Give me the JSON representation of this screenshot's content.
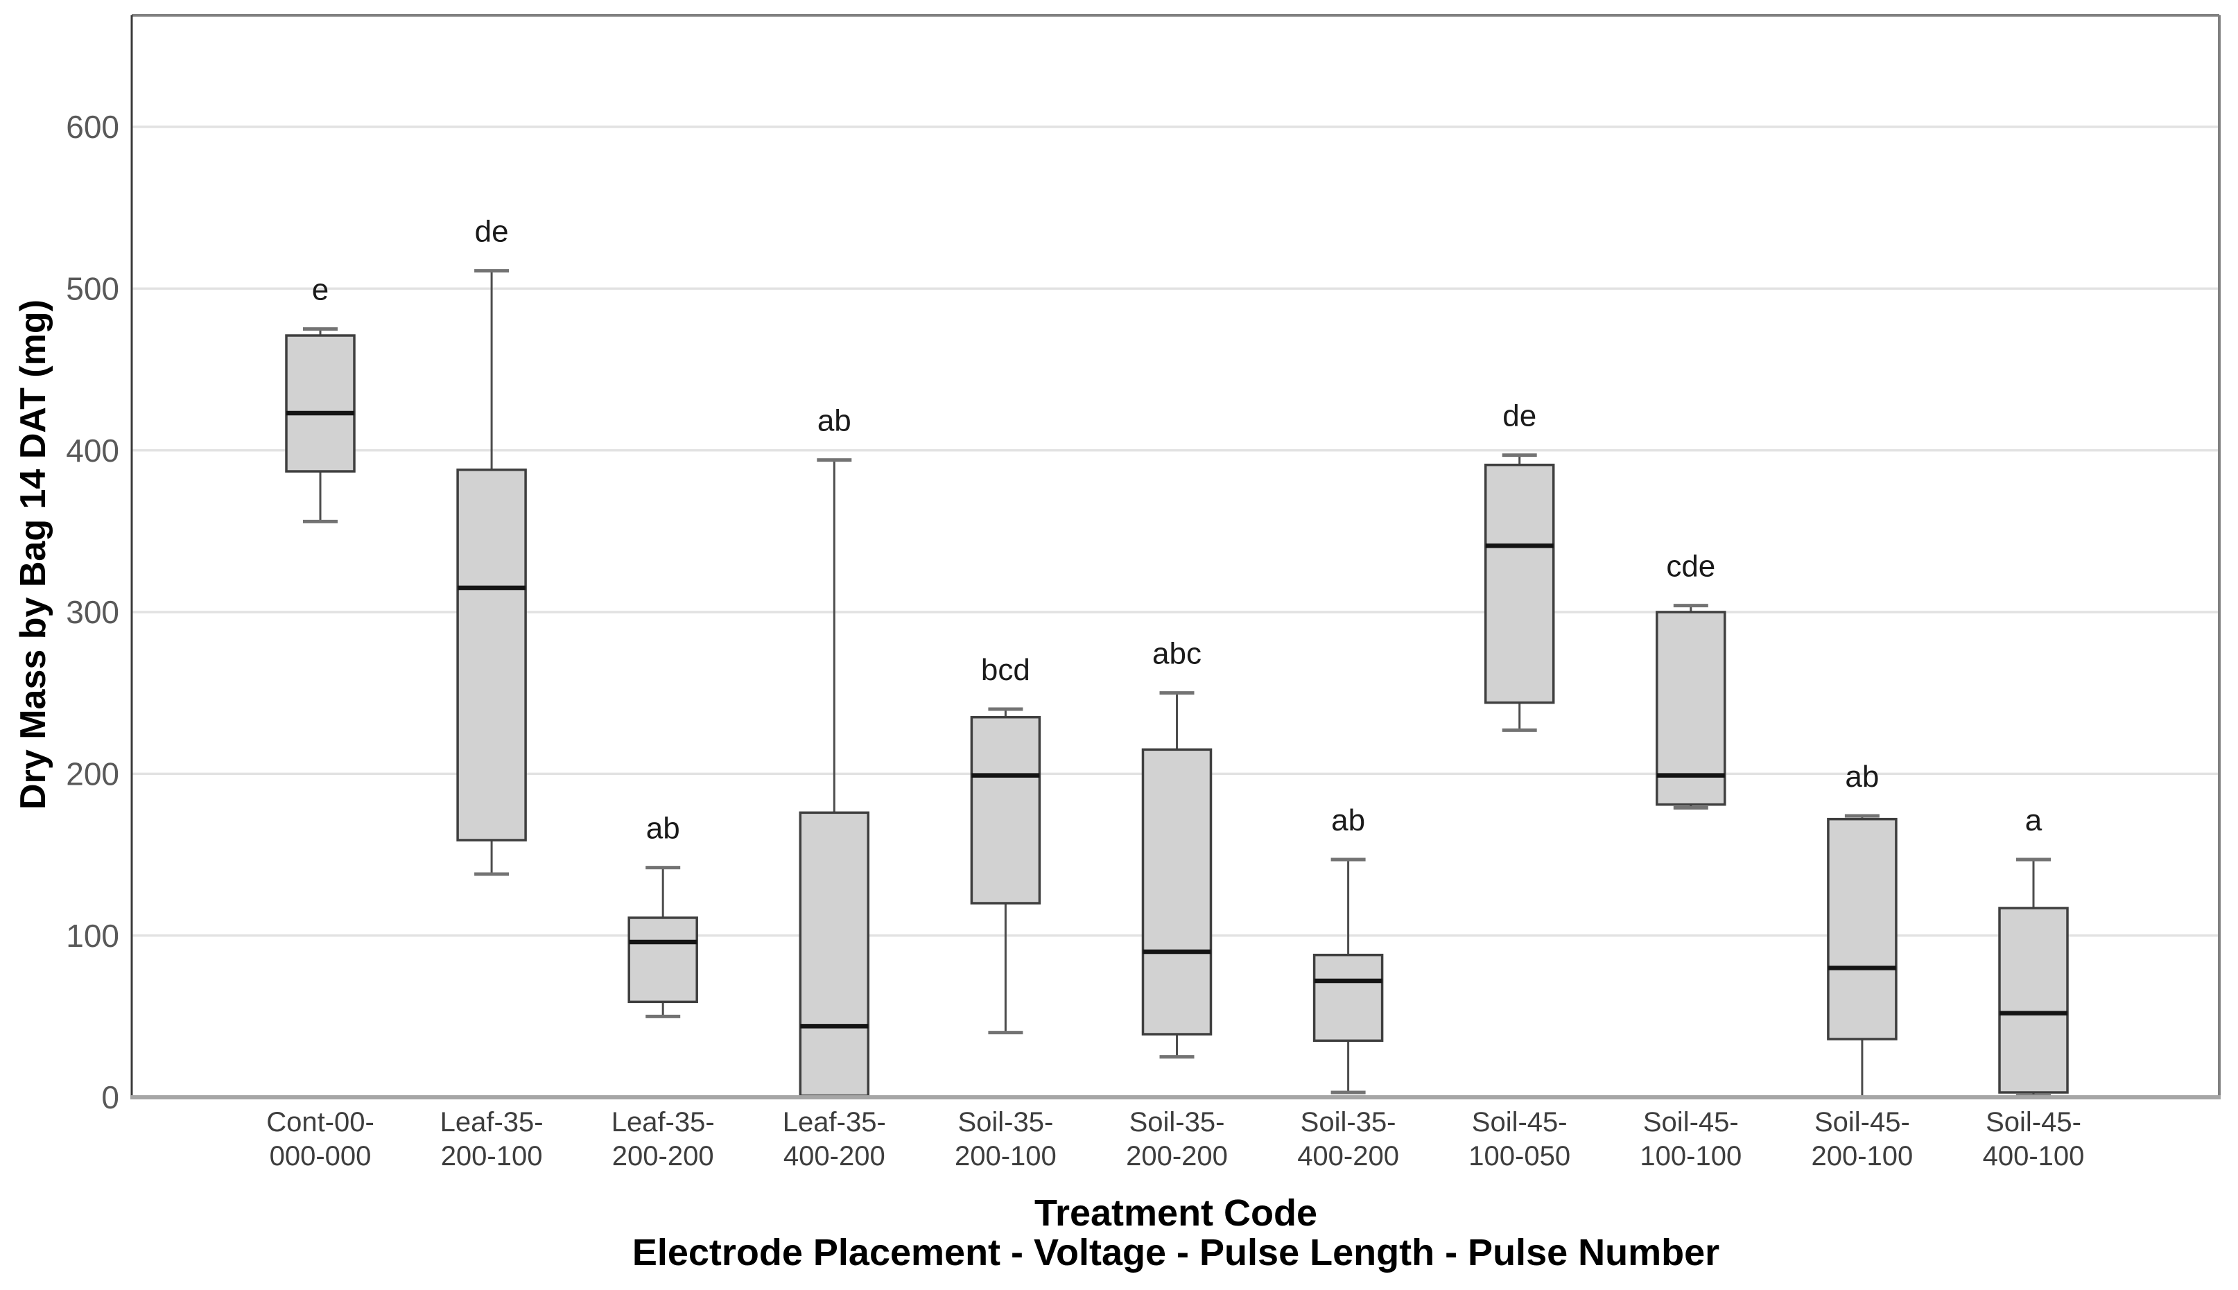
{
  "figure": {
    "background": "#ffffff"
  },
  "chart_data": {
    "type": "boxplot",
    "title": "",
    "xlabel_line1": "Treatment Code",
    "xlabel_line2": "Electrode Placement - Voltage - Pulse Length - Pulse Number",
    "ylabel": "Dry Mass by Bag 14 DAT (mg)",
    "ylim": [
      0,
      669
    ],
    "yticks": [
      0,
      100,
      200,
      300,
      400,
      500,
      600
    ],
    "grid": "horizontal",
    "legend": "none",
    "categories": [
      "Cont-00-000-000",
      "Leaf-35-200-100",
      "Leaf-35-200-200",
      "Leaf-35-400-200",
      "Soil-35-200-100",
      "Soil-35-200-200",
      "Soil-35-400-200",
      "Soil-45-100-050",
      "Soil-45-100-100",
      "Soil-45-200-100",
      "Soil-45-400-100"
    ],
    "series": [
      {
        "label_lines": [
          "Cont-00-",
          "000-000"
        ],
        "letter": "e",
        "min": 356,
        "q1": 387,
        "median": 423,
        "q3": 471,
        "max": 475
      },
      {
        "label_lines": [
          "Leaf-35-",
          "200-100"
        ],
        "letter": "de",
        "min": 138,
        "q1": 159,
        "median": 315,
        "q3": 388,
        "max": 511
      },
      {
        "label_lines": [
          "Leaf-35-",
          "200-200"
        ],
        "letter": "ab",
        "min": 50,
        "q1": 59,
        "median": 96,
        "q3": 111,
        "max": 142
      },
      {
        "label_lines": [
          "Leaf-35-",
          "400-200"
        ],
        "letter": "ab",
        "min": 1,
        "q1": 1,
        "median": 44,
        "q3": 176,
        "max": 394
      },
      {
        "label_lines": [
          "Soil-35-",
          "200-100"
        ],
        "letter": "bcd",
        "min": 40,
        "q1": 120,
        "median": 199,
        "q3": 235,
        "max": 240
      },
      {
        "label_lines": [
          "Soil-35-",
          "200-200"
        ],
        "letter": "abc",
        "min": 25,
        "q1": 39,
        "median": 90,
        "q3": 215,
        "max": 250
      },
      {
        "label_lines": [
          "Soil-35-",
          "400-200"
        ],
        "letter": "ab",
        "min": 3,
        "q1": 35,
        "median": 72,
        "q3": 88,
        "max": 147
      },
      {
        "label_lines": [
          "Soil-45-",
          "100-050"
        ],
        "letter": "de",
        "min": 227,
        "q1": 244,
        "median": 341,
        "q3": 391,
        "max": 397
      },
      {
        "label_lines": [
          "Soil-45-",
          "100-100"
        ],
        "letter": "cde",
        "min": 179,
        "q1": 181,
        "median": 199,
        "q3": 300,
        "max": 304
      },
      {
        "label_lines": [
          "Soil-45-",
          "200-100"
        ],
        "letter": "ab",
        "min": 0,
        "q1": 36,
        "median": 80,
        "q3": 172,
        "max": 174
      },
      {
        "label_lines": [
          "Soil-45-",
          "400-100"
        ],
        "letter": "a",
        "min": 1,
        "q1": 3,
        "median": 52,
        "q3": 117,
        "max": 147
      }
    ]
  },
  "colors": {
    "box_fill": "#d2d2d2",
    "box_border": "#3f3f3f",
    "median": "#141414",
    "whisker": "#4d4d4d",
    "whisker_cap": "#737373",
    "gridline": "#e2e2e2",
    "frame_top_right": "#808080",
    "axis_left": "#3a3a3a",
    "axis_bottom": "#a6a6a6",
    "tick_label": "#595959",
    "category_label": "#3d3d3d",
    "letter": "#1a1a1a",
    "title": "#000000",
    "background": "#ffffff"
  }
}
